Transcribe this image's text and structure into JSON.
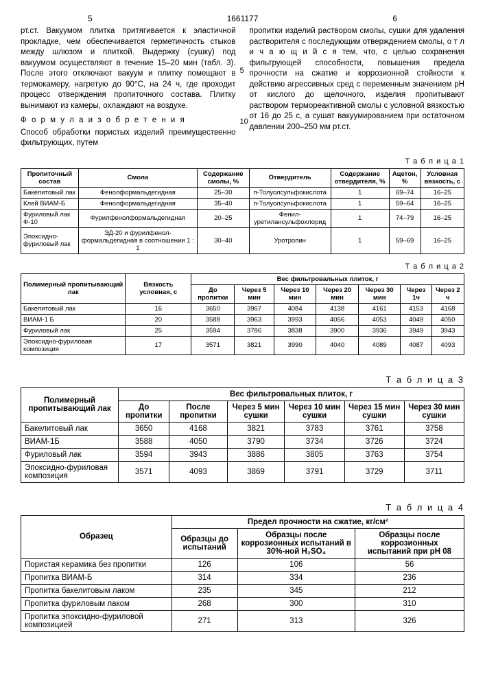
{
  "pageLeft": "5",
  "docNum": "1661177",
  "pageRight": "6",
  "sideNum1": "5",
  "sideNum2": "10",
  "colLeft": "рт.ст. Вакуумом плитка притягивается к эластичной прокладке, чем обеспечивается герметичность стыков между шлюзом и плиткой. Выдержку (сушку) под вакуумом осуществляют в течение 15–20 мин (табл. 3). После этого отключают вакуум и плитку помещают в термокамеру, нагретую до 90°С, на 24 ч, где проходит процесс отверждения пропиточного состава. Плитку вынимают из камеры, охлаждают на воздухе.",
  "formula": "Ф о р м у л а  и з о б р е т е н и я",
  "colLeft2": "Способ обработки пористых изделий преимущественно фильтрующих, путем",
  "colRight": "пропитки изделий раствором смолы, сушки для удаления растворителя с последующим отверждением смолы, о т л и ч а ю щ и й с я тем, что, с целью сохранения фильтрующей способности, повышения предела прочности на сжатие и коррозионной стойкости к действию агрессивных сред с переменным значением pH от кислого до щелочного, изделия пропитывают раствором термореактивной смолы с условной вязкостью от 16 до 25 с, а сушат вакуумированием при остаточном давлении 200–250 мм рт.ст.",
  "t1": {
    "label": "Т а б л и ц а 1",
    "h": [
      "Пропиточный состав",
      "Смола",
      "Содержание смолы, %",
      "Отвердитель",
      "Содержание отвердителя, %",
      "Ацетон, %",
      "Условная вязкость, с"
    ],
    "rows": [
      [
        "Бакелитовый лак",
        "Фенолформальдегидная",
        "25–30",
        "п-Толуолсульфокислота",
        "1",
        "69–74",
        "16–25"
      ],
      [
        "Клей ВИАМ-Б",
        "Фенолформальдегидная",
        "35–40",
        "п-Толуолсульфокислота",
        "1",
        "59–64",
        "16–25"
      ],
      [
        "Фуриловый лак Ф-10",
        "Фурилфенолформальдегидная",
        "20–25",
        "Фенил-уретилансульфохлорид",
        "1",
        "74–79",
        "16–25"
      ],
      [
        "Эпоксидно-фуриловый лак",
        "ЭД-20 и фурилфенол-формальдегидная в соотношении 1 : 1",
        "30–40",
        "Уротропин",
        "1",
        "59–69",
        "16–25"
      ]
    ]
  },
  "t2": {
    "label": "Т а б л и ц а 2",
    "h1": [
      "Полимерный пропитывающий лак",
      "Вязкость условная, с",
      "Вес фильтровальных плиток, г"
    ],
    "h2": [
      "До пропитки",
      "Через 5 мин",
      "Через 10 мин",
      "Через 20 мин",
      "Через 30 мин",
      "Через 1ч",
      "Через 2 ч"
    ],
    "rows": [
      [
        "Бакелитовый лак",
        "16",
        "3650",
        "3967",
        "4084",
        "4138",
        "4161",
        "4153",
        "4168"
      ],
      [
        "ВИАМ-1 Б",
        "20",
        "3588",
        "3963",
        "3993",
        "4056",
        "4053",
        "4049",
        "4050"
      ],
      [
        "Фуриловый лак",
        "25",
        "3594",
        "3786",
        "3838",
        "3900",
        "3936",
        "3949",
        "3943"
      ],
      [
        "Эпоксидно-фуриловая композиция",
        "17",
        "3571",
        "3821",
        "3990",
        "4040",
        "4089",
        "4087",
        "4093"
      ]
    ]
  },
  "t3": {
    "label": "Т а б л и ц а 3",
    "h1": [
      "Полимерный пропитывающий лак",
      "Вес фильтровальных плиток, г"
    ],
    "h2": [
      "До пропитки",
      "После пропитки",
      "Через 5 мин сушки",
      "Через 10 мин сушки",
      "Через 15 мин сушки",
      "Через 30 мин сушки"
    ],
    "rows": [
      [
        "Бакелитовый лак",
        "3650",
        "4168",
        "3821",
        "3783",
        "3761",
        "3758"
      ],
      [
        "ВИАМ-1Б",
        "3588",
        "4050",
        "3790",
        "3734",
        "3726",
        "3724"
      ],
      [
        "Фуриловый лак",
        "3594",
        "3943",
        "3886",
        "3805",
        "3763",
        "3754"
      ],
      [
        "Эпоксидно-фуриловая композиция",
        "3571",
        "4093",
        "3869",
        "3791",
        "3729",
        "3711"
      ]
    ]
  },
  "t4": {
    "label": "Т а б л и ц а 4",
    "h1": [
      "Образец",
      "Предел прочности на сжатие, кг/см²"
    ],
    "h2": [
      "Образцы до испытаний",
      "Образцы после коррозионных испытаний в 30%-ной H₂SO₄",
      "Образцы после коррозионных испытаний при pH 08"
    ],
    "rows": [
      [
        "Пористая керамика без пропитки",
        "126",
        "106",
        "56"
      ],
      [
        "Пропитка ВИАМ-Б",
        "314",
        "334",
        "236"
      ],
      [
        "Пропитка бакелитовым лаком",
        "235",
        "345",
        "212"
      ],
      [
        "Пропитка фуриловым лаком",
        "268",
        "300",
        "310"
      ],
      [
        "Пропитка эпоксидно-фуриловой композицией",
        "271",
        "313",
        "326"
      ]
    ]
  }
}
